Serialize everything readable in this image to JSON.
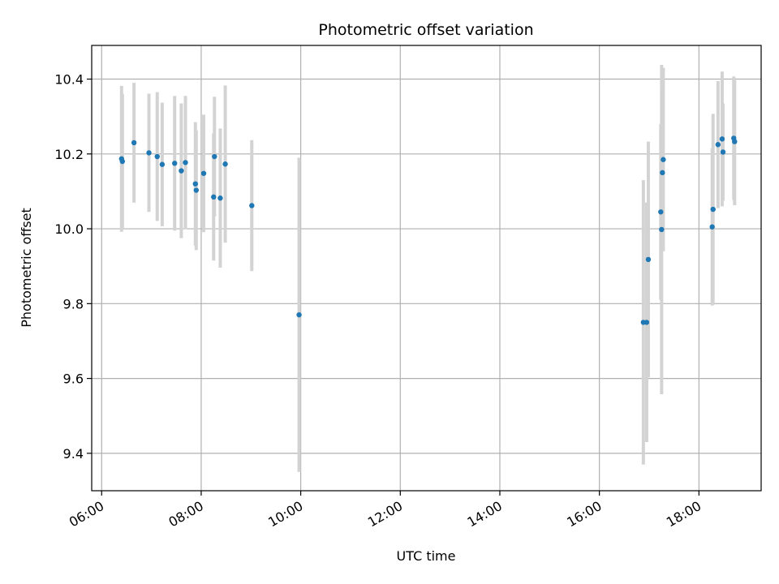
{
  "chart_data": {
    "type": "scatter",
    "title": "Photometric offset variation",
    "xlabel": "UTC time",
    "ylabel": "Photometric offset",
    "x_ticks": [
      "06:00",
      "08:00",
      "10:00",
      "12:00",
      "14:00",
      "16:00",
      "18:00"
    ],
    "xlim": [
      "05:48",
      "19:15"
    ],
    "ylim": [
      9.3,
      10.49
    ],
    "y_ticks": [
      "9.4",
      "9.6",
      "9.8",
      "10.0",
      "10.2",
      "10.4"
    ],
    "grid": true,
    "colors": {
      "point": "#1f77b4",
      "errorbar": "#d3d3d3",
      "grid": "#b0b0b0"
    },
    "points": [
      {
        "x": "06:24",
        "y": 10.187,
        "err": 0.195
      },
      {
        "x": "06:25",
        "y": 10.18,
        "err": 0.18
      },
      {
        "x": "06:39",
        "y": 10.23,
        "err": 0.16
      },
      {
        "x": "06:57",
        "y": 10.203,
        "err": 0.158
      },
      {
        "x": "07:07",
        "y": 10.193,
        "err": 0.172
      },
      {
        "x": "07:13",
        "y": 10.172,
        "err": 0.165
      },
      {
        "x": "07:28",
        "y": 10.175,
        "err": 0.18
      },
      {
        "x": "07:36",
        "y": 10.155,
        "err": 0.18
      },
      {
        "x": "07:41",
        "y": 10.177,
        "err": 0.178
      },
      {
        "x": "07:53",
        "y": 10.12,
        "err": 0.165
      },
      {
        "x": "07:54",
        "y": 10.103,
        "err": 0.16
      },
      {
        "x": "08:03",
        "y": 10.148,
        "err": 0.157
      },
      {
        "x": "08:15",
        "y": 10.085,
        "err": 0.17
      },
      {
        "x": "08:16",
        "y": 10.193,
        "err": 0.16
      },
      {
        "x": "08:23",
        "y": 10.082,
        "err": 0.186
      },
      {
        "x": "08:29",
        "y": 10.173,
        "err": 0.21
      },
      {
        "x": "09:01",
        "y": 10.062,
        "err": 0.175
      },
      {
        "x": "09:58",
        "y": 9.77,
        "err": 0.42
      },
      {
        "x": "16:53",
        "y": 9.75,
        "err": 0.38
      },
      {
        "x": "16:57",
        "y": 9.75,
        "err": 0.32
      },
      {
        "x": "16:59",
        "y": 9.918,
        "err": 0.315
      },
      {
        "x": "17:14",
        "y": 10.045,
        "err": 0.235
      },
      {
        "x": "17:15",
        "y": 9.998,
        "err": 0.44
      },
      {
        "x": "17:16",
        "y": 10.15,
        "err": 0.21
      },
      {
        "x": "17:17",
        "y": 10.185,
        "err": 0.245
      },
      {
        "x": "18:16",
        "y": 10.005,
        "err": 0.21
      },
      {
        "x": "18:17",
        "y": 10.052,
        "err": 0.255
      },
      {
        "x": "18:23",
        "y": 10.225,
        "err": 0.17
      },
      {
        "x": "18:28",
        "y": 10.24,
        "err": 0.18
      },
      {
        "x": "18:29",
        "y": 10.205,
        "err": 0.13
      },
      {
        "x": "18:42",
        "y": 10.242,
        "err": 0.165
      },
      {
        "x": "18:43",
        "y": 10.233,
        "err": 0.17
      }
    ]
  }
}
